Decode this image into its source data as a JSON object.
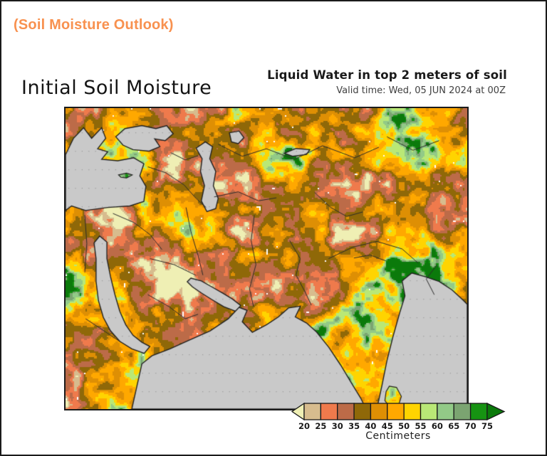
{
  "header": {
    "title": "(Soil Moisture Outlook)"
  },
  "figure": {
    "title": "Initial Soil Moisture",
    "subtitle": "Liquid Water in top 2 meters of soil",
    "valid_time": "Valid time: Wed, 05 JUN 2024 at 00Z"
  },
  "colorbar": {
    "unit_label": "Centimeters",
    "ticks": [
      "20",
      "25",
      "30",
      "35",
      "40",
      "45",
      "50",
      "55",
      "60",
      "65",
      "70",
      "75"
    ],
    "cell_colors": [
      "#D7BC8E",
      "#EF7A4C",
      "#BC6B48",
      "#8F6808",
      "#DE8F04",
      "#FFA800",
      "#FFD400",
      "#B9E876",
      "#92CA87",
      "#7BA471",
      "#169312"
    ],
    "under_range_color": "#EFEFB4",
    "over_range_color": "#0B7A0B",
    "outline_color": "#1A1A1A"
  },
  "map": {
    "water_color": "#C9C9C9",
    "coast_color": "#1F1F1F",
    "border_line_color": "#2A2A2A",
    "speck_color": "#FFFFFF",
    "land_palette": [
      "#EFEFB4",
      "#D7BC8E",
      "#EF7A4C",
      "#BC6B48",
      "#8F6808",
      "#DE8F04",
      "#FFA800",
      "#FFD400",
      "#B9E876",
      "#92CA87",
      "#7BA471",
      "#169312",
      "#0B7A0B"
    ]
  },
  "theme": {
    "header_color": "#F8914F",
    "title_color": "#141414",
    "subtitle_color": "#1A1A1A",
    "valid_time_color": "#3F3F3F",
    "tick_color": "#1A1A1A",
    "unit_color": "#222222"
  }
}
